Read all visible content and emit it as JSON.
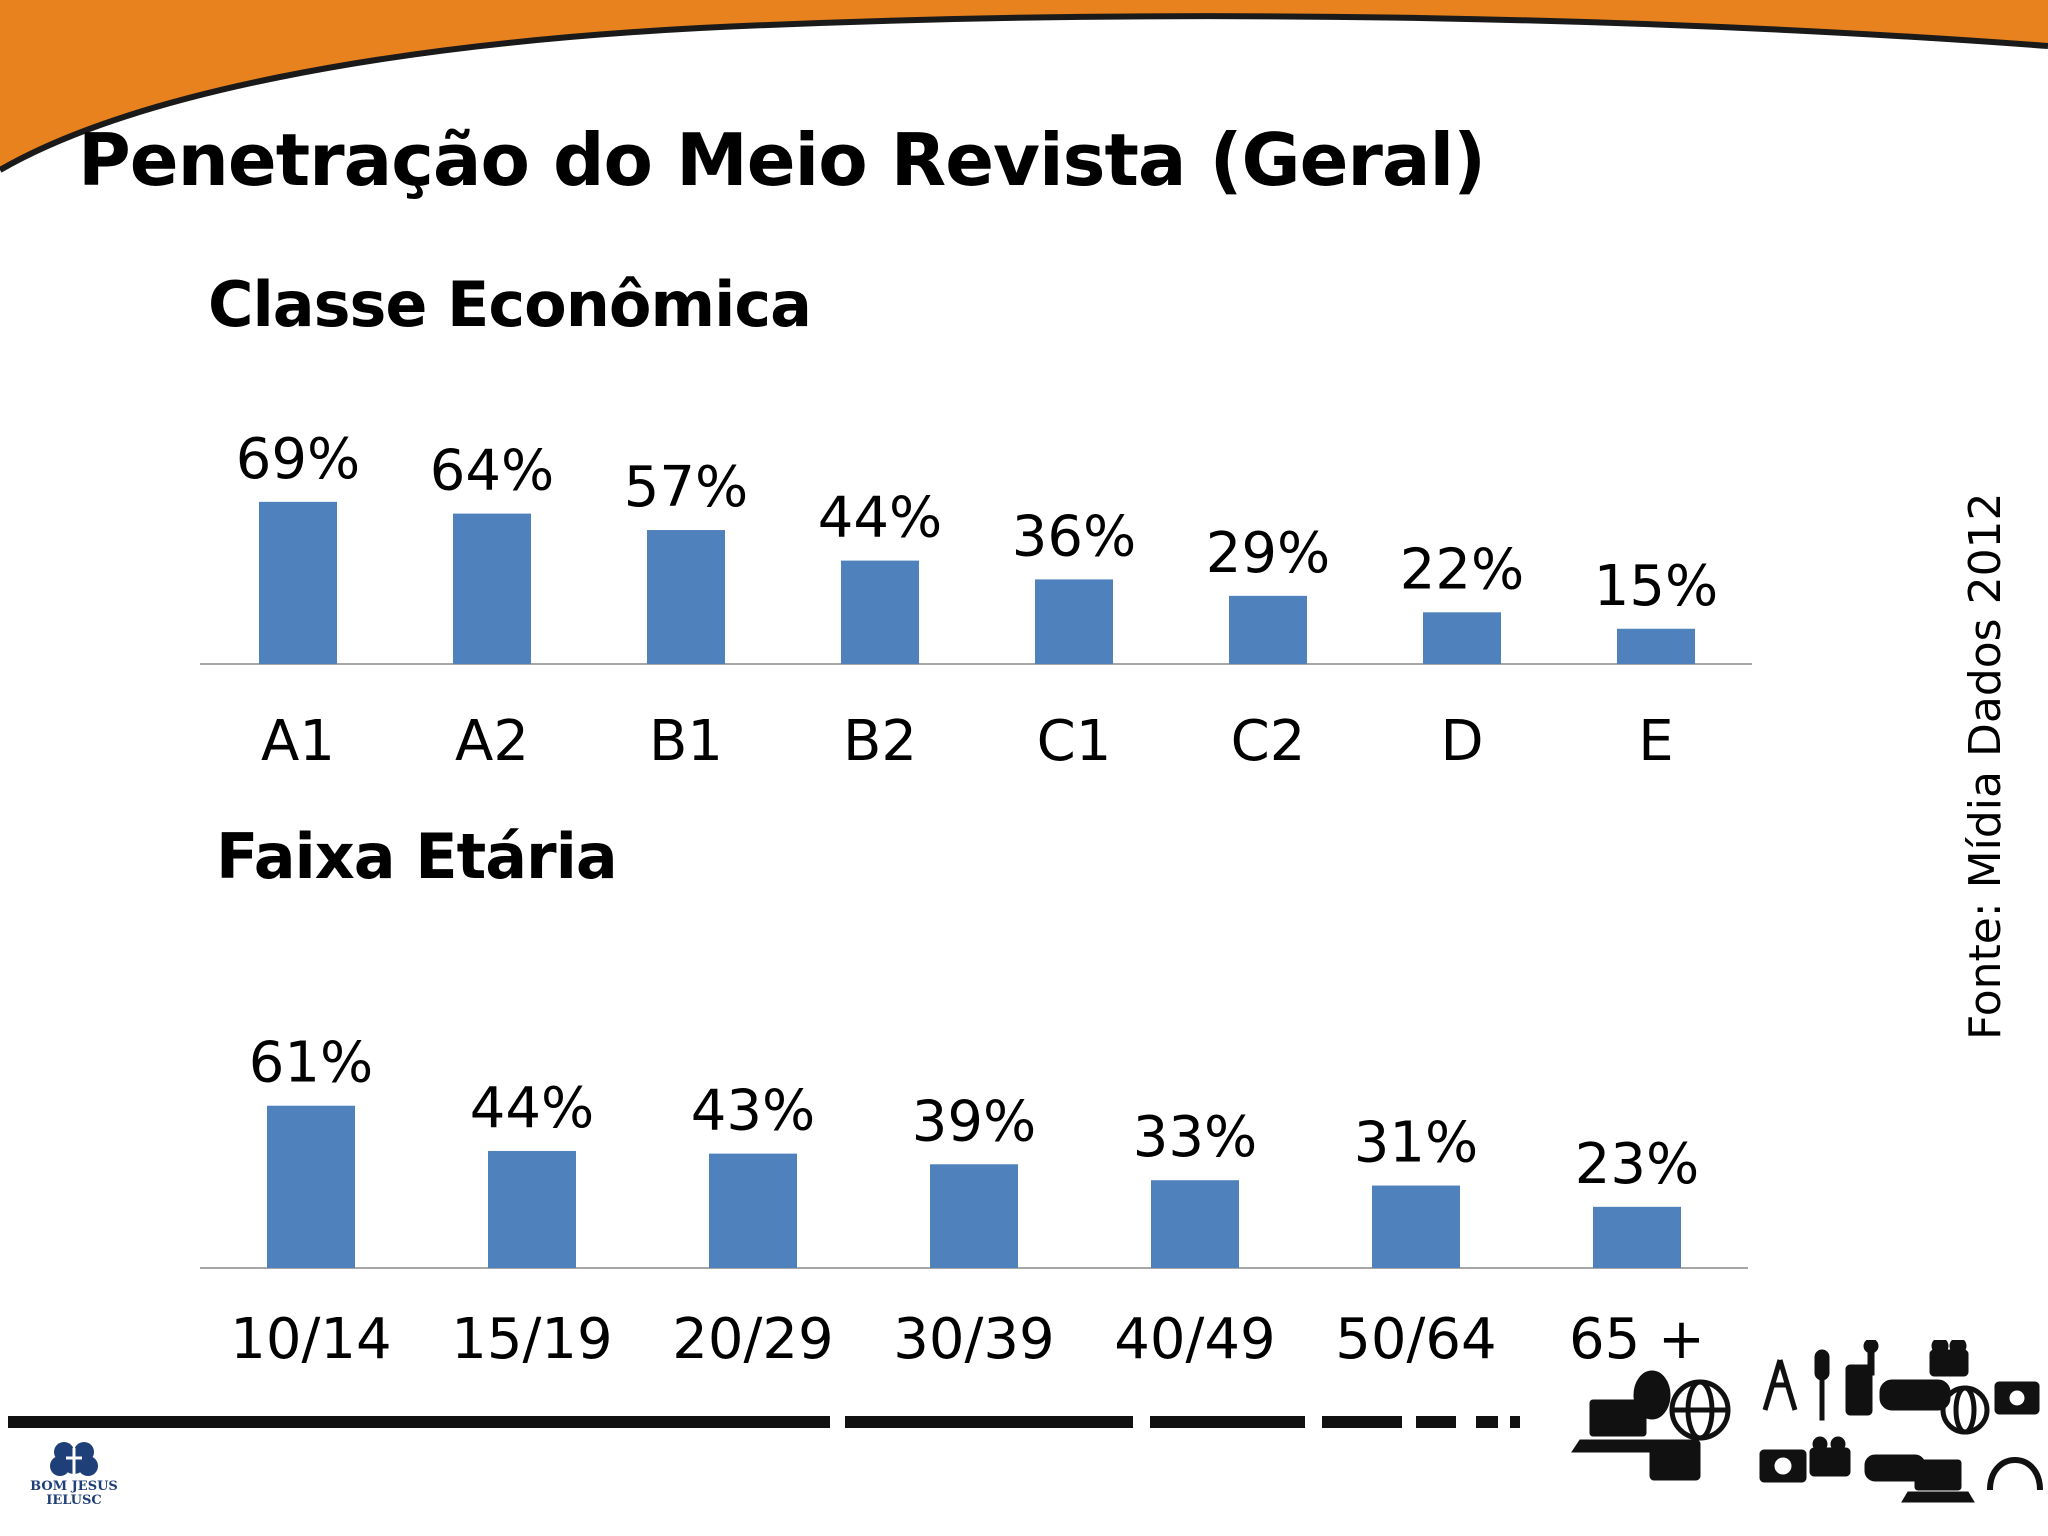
{
  "title": "Penetração do Meio Revista  (Geral)",
  "source": "Fonte: Mídia Dados 2012",
  "logo": {
    "line1": "BOM JESUS",
    "line2": "IELUSC"
  },
  "colors": {
    "accent": "#e8821e",
    "bar": "#4f81bd",
    "axis": "#a6a6a6"
  },
  "chart_data": [
    {
      "type": "bar",
      "title": "Classe Econômica",
      "categories": [
        "A1",
        "A2",
        "B1",
        "B2",
        "C1",
        "C2",
        "D",
        "E"
      ],
      "values": [
        69,
        64,
        57,
        44,
        36,
        29,
        22,
        15
      ],
      "value_labels": [
        "69%",
        "64%",
        "57%",
        "44%",
        "36%",
        "29%",
        "22%",
        "15%"
      ],
      "unit": "%",
      "ylim": [
        0,
        100
      ],
      "grid": false,
      "legend": "none"
    },
    {
      "type": "bar",
      "title": "Faixa Etária",
      "categories": [
        "10/14",
        "15/19",
        "20/29",
        "30/39",
        "40/49",
        "50/64",
        "65 +"
      ],
      "values": [
        61,
        44,
        43,
        39,
        33,
        31,
        23
      ],
      "value_labels": [
        "61%",
        "44%",
        "43%",
        "39%",
        "33%",
        "31%",
        "23%"
      ],
      "unit": "%",
      "ylim": [
        0,
        100
      ],
      "grid": false,
      "legend": "none"
    }
  ]
}
